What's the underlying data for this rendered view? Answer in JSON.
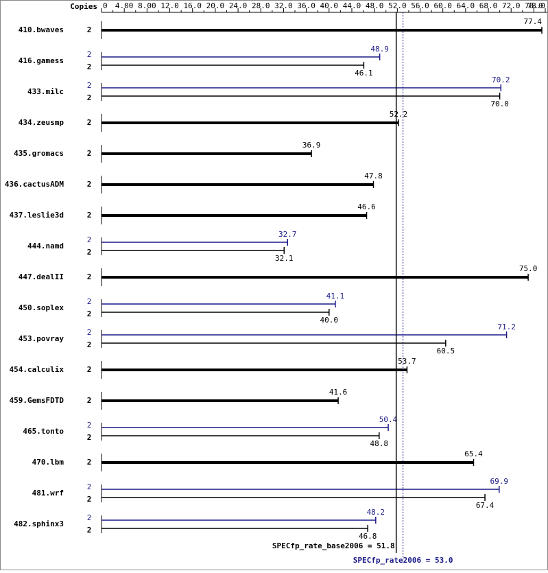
{
  "chart_data": {
    "type": "bar",
    "copies_header": "Copies",
    "categories": [
      "410.bwaves",
      "416.gamess",
      "433.milc",
      "434.zeusmp",
      "435.gromacs",
      "436.cactusADM",
      "437.leslie3d",
      "444.namd",
      "447.dealII",
      "450.soplex",
      "453.povray",
      "454.calculix",
      "459.GemsFDTD",
      "465.tonto",
      "470.lbm",
      "481.wrf",
      "482.sphinx3"
    ],
    "copies": [
      2,
      2,
      2,
      2,
      2,
      2,
      2,
      2,
      2,
      2,
      2,
      2,
      2,
      2,
      2,
      2,
      2
    ],
    "base_color": "#000000",
    "peak_color": "#191988",
    "base_values": [
      77.4,
      46.1,
      70.0,
      52.2,
      36.9,
      47.8,
      46.6,
      32.1,
      75.0,
      40.0,
      60.5,
      53.7,
      41.6,
      48.8,
      65.4,
      67.4,
      46.8
    ],
    "base_value_labels": [
      "77.4",
      "46.1",
      "70.0",
      "52.2",
      "36.9",
      "47.8",
      "46.6",
      "32.1",
      "75.0",
      "40.0",
      "60.5",
      "53.7",
      "41.6",
      "48.8",
      "65.4",
      "67.4",
      "46.8"
    ],
    "peak_values": [
      null,
      48.9,
      70.2,
      null,
      null,
      null,
      null,
      32.7,
      null,
      41.1,
      71.2,
      null,
      null,
      50.4,
      null,
      69.9,
      48.2
    ],
    "peak_value_labels": [
      null,
      "48.9",
      "70.2",
      null,
      null,
      null,
      null,
      "32.7",
      null,
      "41.1",
      "71.2",
      null,
      null,
      "50.4",
      null,
      "69.9",
      "48.2"
    ],
    "xlim": [
      0,
      78.0
    ],
    "xticks": [
      0,
      {
        "value": 4,
        "label": "4.00"
      },
      {
        "value": 8,
        "label": "8.00"
      },
      {
        "value": 12,
        "label": "12.0"
      },
      {
        "value": 16,
        "label": "16.0"
      },
      {
        "value": 20,
        "label": "20.0"
      },
      {
        "value": 24,
        "label": "24.0"
      },
      {
        "value": 28,
        "label": "28.0"
      },
      {
        "value": 32,
        "label": "32.0"
      },
      {
        "value": 36,
        "label": "36.0"
      },
      {
        "value": 40,
        "label": "40.0"
      },
      {
        "value": 44,
        "label": "44.0"
      },
      {
        "value": 48,
        "label": "48.0"
      },
      {
        "value": 52,
        "label": "52.0"
      },
      {
        "value": 56,
        "label": "56.0"
      },
      {
        "value": 60,
        "label": "60.0"
      },
      {
        "value": 64,
        "label": "64.0"
      },
      {
        "value": 68,
        "label": "68.0"
      },
      {
        "value": 72,
        "label": "72.0"
      },
      {
        "value": 76,
        "label": "76.0"
      },
      {
        "value": 78,
        "label": "78.0"
      }
    ],
    "reference_lines": [
      {
        "label": "SPECfp_rate_base2006 = 51.8",
        "value": 51.8,
        "color": "#000000",
        "style": "solid"
      },
      {
        "label": "SPECfp_rate2006 = 53.0",
        "value": 53.0,
        "color": "#191988",
        "style": "dotted"
      }
    ]
  }
}
